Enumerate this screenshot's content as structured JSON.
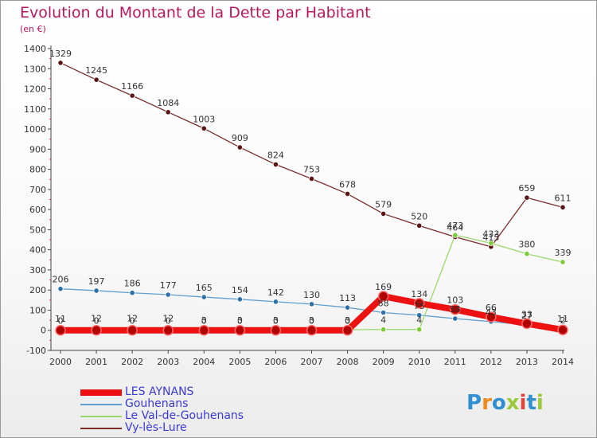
{
  "title": "Evolution du Montant de la Dette par Habitant",
  "subtitle": "(en €)",
  "logo": {
    "text": "Proxiti",
    "letters": [
      {
        "ch": "P",
        "color": "#2f8fd0"
      },
      {
        "ch": "r",
        "color": "#f08a1c"
      },
      {
        "ch": "o",
        "color": "#2f8fd0"
      },
      {
        "ch": "x",
        "color": "#9bc93b"
      },
      {
        "ch": "i",
        "color": "#e0443a"
      },
      {
        "ch": "t",
        "color": "#2f8fd0"
      },
      {
        "ch": "i",
        "color": "#9bc93b"
      }
    ]
  },
  "chart_data": {
    "type": "line",
    "title": "Evolution du Montant de la Dette par Habitant",
    "ylabel": "(en €)",
    "xlabel": "",
    "x": [
      "2000",
      "2001",
      "2002",
      "2003",
      "2004",
      "2005",
      "2006",
      "2007",
      "2008",
      "2009",
      "2010",
      "2011",
      "2012",
      "2013",
      "2014"
    ],
    "ylim": [
      -100,
      1400
    ],
    "yticks": [
      "-100",
      "0",
      "100",
      "200",
      "300",
      "400",
      "500",
      "600",
      "700",
      "800",
      "900",
      "1000",
      "1100",
      "1200",
      "1300",
      "1400"
    ],
    "grid": false,
    "legend_position": "bottom-left",
    "series": [
      {
        "name": "LES AYNANS",
        "color": "#ee1111",
        "marker": "#b00000",
        "width": 8,
        "values": [
          0,
          0,
          0,
          0,
          0,
          0,
          0,
          0,
          0,
          169,
          134,
          103,
          66,
          33,
          2
        ],
        "labels": [
          "0",
          "0",
          "0",
          "0",
          "0",
          "0",
          "0",
          "0",
          "0",
          "169",
          "134",
          "103",
          "66",
          "33",
          "2"
        ]
      },
      {
        "name": "Gouhenans",
        "color": "#5f9fd0",
        "marker": "#2e6fa8",
        "width": 1.3,
        "values": [
          206,
          197,
          186,
          177,
          165,
          154,
          142,
          130,
          113,
          88,
          75,
          58,
          43,
          27,
          11
        ],
        "labels": [
          "206",
          "197",
          "186",
          "177",
          "165",
          "154",
          "142",
          "130",
          "113",
          "88",
          "75",
          "58",
          "43",
          "27",
          "11"
        ]
      },
      {
        "name": "Le Val-de-Gouhenans",
        "color": "#9bd86a",
        "marker": "#7acb3a",
        "width": 1.3,
        "values": [
          11,
          12,
          12,
          12,
          3,
          3,
          3,
          3,
          3,
          4,
          4,
          473,
          433,
          380,
          339
        ],
        "labels": [
          "11",
          "12",
          "12",
          "12",
          "3",
          "3",
          "3",
          "3",
          "3",
          "4",
          "4",
          "473",
          "433",
          "380",
          "339"
        ]
      },
      {
        "name": "Vy-lès-Lure",
        "color": "#7a2a2a",
        "marker": "#5b1414",
        "width": 1.3,
        "values": [
          1329,
          1245,
          1166,
          1084,
          1003,
          909,
          824,
          753,
          678,
          579,
          520,
          464,
          415,
          659,
          611
        ],
        "labels": [
          "1329",
          "1245",
          "1166",
          "1084",
          "1003",
          "909",
          "824",
          "753",
          "678",
          "579",
          "520",
          "464",
          "415",
          "659",
          "611"
        ]
      }
    ]
  }
}
